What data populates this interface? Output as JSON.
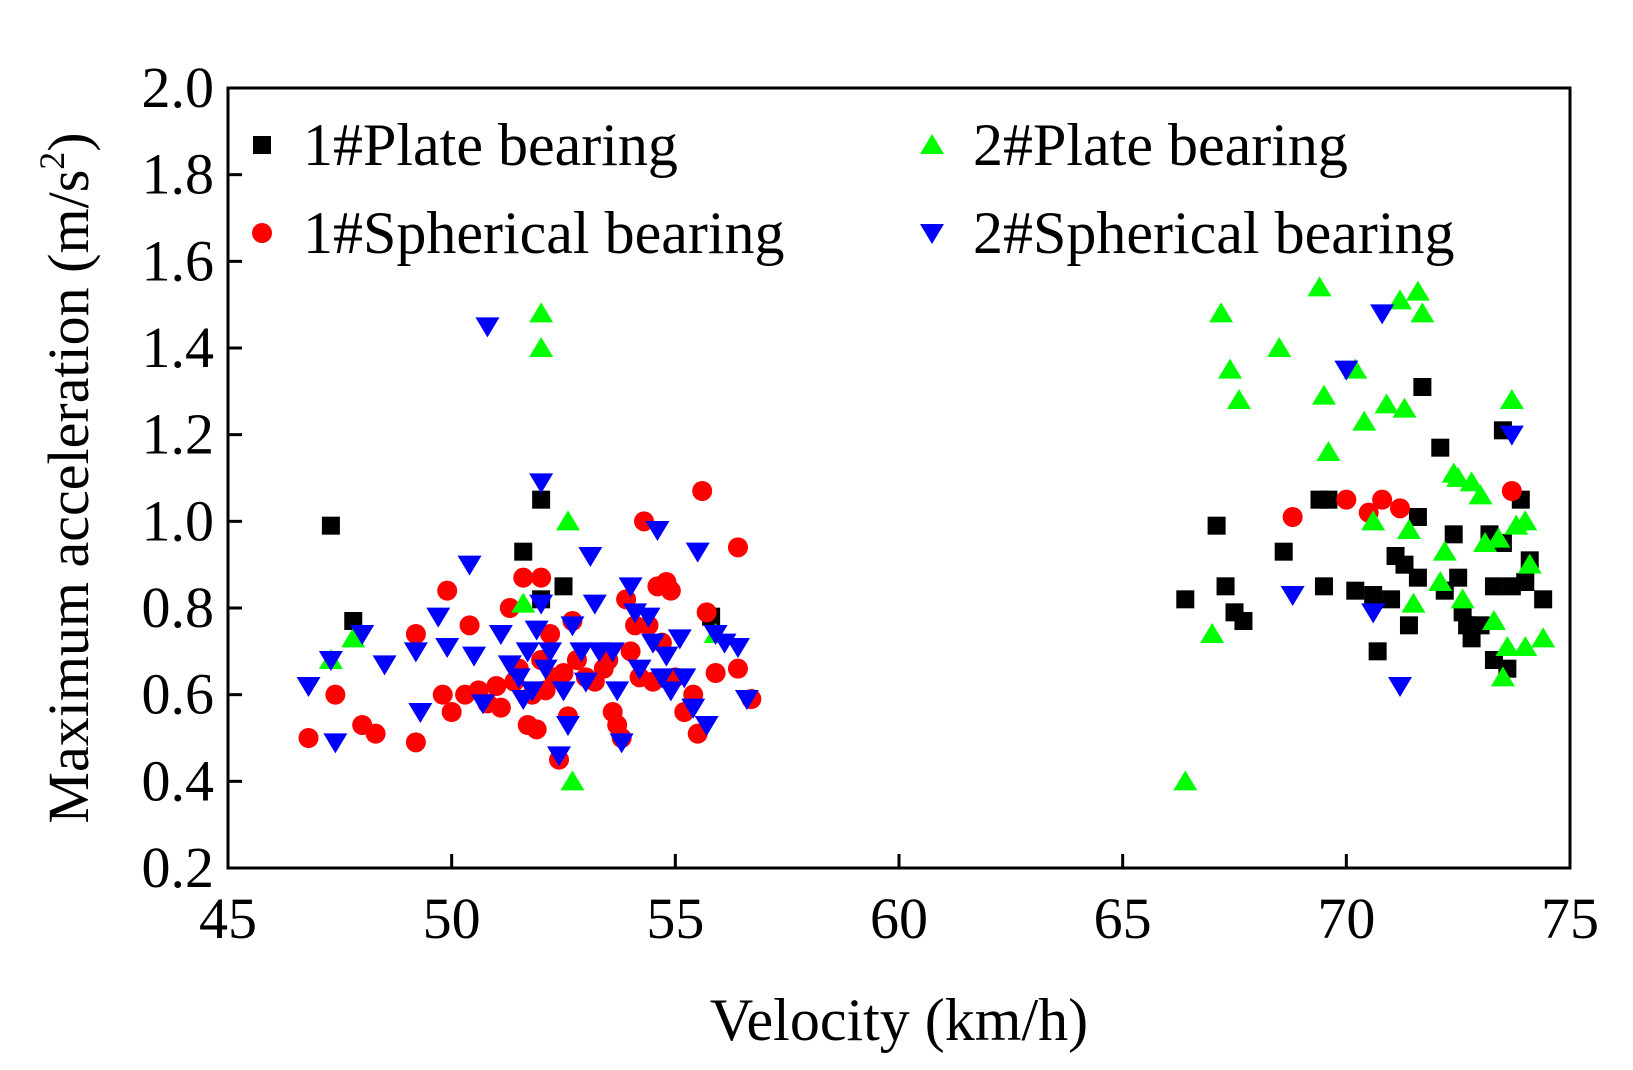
{
  "chart_data": {
    "type": "scatter",
    "title": "",
    "xlabel": "Velocity (km/h)",
    "ylabel": "Maximum acceleration (m/s²)",
    "ylabel_main": "Maximum acceleration (m/s",
    "ylabel_sup": "2",
    "ylabel_close": ")",
    "xlim": [
      45,
      75
    ],
    "ylim": [
      0.2,
      2.0
    ],
    "xticks": [
      45,
      50,
      55,
      60,
      65,
      70,
      75
    ],
    "yticks": [
      0.2,
      0.4,
      0.6,
      0.8,
      1.0,
      1.2,
      1.4,
      1.6,
      1.8,
      2.0
    ],
    "xtick_labels": [
      "45",
      "50",
      "55",
      "60",
      "65",
      "70",
      "75"
    ],
    "ytick_labels": [
      "0.2",
      "0.4",
      "0.6",
      "0.8",
      "1.0",
      "1.2",
      "1.4",
      "1.6",
      "1.8",
      "2.0"
    ],
    "grid": false,
    "legend_position": "top",
    "series": [
      {
        "name": "1#Plate bearing",
        "marker": "square",
        "color": "#000000",
        "points": [
          [
            47.3,
            0.99
          ],
          [
            47.8,
            0.77
          ],
          [
            51.6,
            0.93
          ],
          [
            52.0,
            1.05
          ],
          [
            52.0,
            0.82
          ],
          [
            52.5,
            0.85
          ],
          [
            55.8,
            0.78
          ],
          [
            66.4,
            0.82
          ],
          [
            67.1,
            0.99
          ],
          [
            67.3,
            0.85
          ],
          [
            67.5,
            0.79
          ],
          [
            67.7,
            0.77
          ],
          [
            68.6,
            0.93
          ],
          [
            69.4,
            1.05
          ],
          [
            69.5,
            0.85
          ],
          [
            69.6,
            1.05
          ],
          [
            70.2,
            0.84
          ],
          [
            70.6,
            0.83
          ],
          [
            70.7,
            0.7
          ],
          [
            71.0,
            0.82
          ],
          [
            71.1,
            0.92
          ],
          [
            71.3,
            0.9
          ],
          [
            71.4,
            0.76
          ],
          [
            71.6,
            1.01
          ],
          [
            71.6,
            0.87
          ],
          [
            71.7,
            1.31
          ],
          [
            72.1,
            1.17
          ],
          [
            72.2,
            0.84
          ],
          [
            72.4,
            0.97
          ],
          [
            72.5,
            0.87
          ],
          [
            72.6,
            0.79
          ],
          [
            72.7,
            0.76
          ],
          [
            72.8,
            0.73
          ],
          [
            73.0,
            0.76
          ],
          [
            73.2,
            0.97
          ],
          [
            73.3,
            0.85
          ],
          [
            73.3,
            0.68
          ],
          [
            73.5,
            0.95
          ],
          [
            73.5,
            1.21
          ],
          [
            73.6,
            0.66
          ],
          [
            73.7,
            0.85
          ],
          [
            73.9,
            1.05
          ],
          [
            74.0,
            0.86
          ],
          [
            74.1,
            0.91
          ],
          [
            74.4,
            0.82
          ]
        ]
      },
      {
        "name": "1#Spherical bearing",
        "marker": "circle",
        "color": "#ff0000",
        "points": [
          [
            46.8,
            0.5
          ],
          [
            47.4,
            0.6
          ],
          [
            48.0,
            0.53
          ],
          [
            48.3,
            0.51
          ],
          [
            49.2,
            0.74
          ],
          [
            49.2,
            0.49
          ],
          [
            49.8,
            0.6
          ],
          [
            49.9,
            0.84
          ],
          [
            50.0,
            0.56
          ],
          [
            50.3,
            0.6
          ],
          [
            50.4,
            0.76
          ],
          [
            50.6,
            0.61
          ],
          [
            50.8,
            0.58
          ],
          [
            51.0,
            0.62
          ],
          [
            51.1,
            0.57
          ],
          [
            51.3,
            0.8
          ],
          [
            51.4,
            0.63
          ],
          [
            51.5,
            0.66
          ],
          [
            51.6,
            0.87
          ],
          [
            51.7,
            0.53
          ],
          [
            51.8,
            0.6
          ],
          [
            51.9,
            0.52
          ],
          [
            52.0,
            0.87
          ],
          [
            52.0,
            0.68
          ],
          [
            52.1,
            0.61
          ],
          [
            52.2,
            0.74
          ],
          [
            52.3,
            0.64
          ],
          [
            52.4,
            0.45
          ],
          [
            52.5,
            0.65
          ],
          [
            52.6,
            0.55
          ],
          [
            52.7,
            0.77
          ],
          [
            52.8,
            0.68
          ],
          [
            53.0,
            0.64
          ],
          [
            53.2,
            0.63
          ],
          [
            53.4,
            0.66
          ],
          [
            53.5,
            0.68
          ],
          [
            53.6,
            0.56
          ],
          [
            53.7,
            0.53
          ],
          [
            53.8,
            0.5
          ],
          [
            53.9,
            0.82
          ],
          [
            54.0,
            0.7
          ],
          [
            54.1,
            0.76
          ],
          [
            54.2,
            0.64
          ],
          [
            54.3,
            1.0
          ],
          [
            54.4,
            0.76
          ],
          [
            54.5,
            0.63
          ],
          [
            54.6,
            0.85
          ],
          [
            54.7,
            0.72
          ],
          [
            54.8,
            0.86
          ],
          [
            54.9,
            0.84
          ],
          [
            55.0,
            0.64
          ],
          [
            55.2,
            0.56
          ],
          [
            55.4,
            0.6
          ],
          [
            55.5,
            0.51
          ],
          [
            55.6,
            1.07
          ],
          [
            55.7,
            0.79
          ],
          [
            55.9,
            0.65
          ],
          [
            56.4,
            0.94
          ],
          [
            56.4,
            0.66
          ],
          [
            56.7,
            0.59
          ],
          [
            68.8,
            1.01
          ],
          [
            70.0,
            1.05
          ],
          [
            70.5,
            1.02
          ],
          [
            70.8,
            1.05
          ],
          [
            71.2,
            1.03
          ],
          [
            73.7,
            1.07
          ]
        ]
      },
      {
        "name": "2#Plate bearing",
        "marker": "triangle-up",
        "color": "#00ff00",
        "points": [
          [
            47.3,
            0.68
          ],
          [
            47.8,
            0.73
          ],
          [
            51.6,
            0.81
          ],
          [
            52.0,
            1.48
          ],
          [
            52.0,
            1.4
          ],
          [
            52.6,
            1.0
          ],
          [
            52.7,
            0.4
          ],
          [
            55.9,
            0.74
          ],
          [
            66.4,
            0.4
          ],
          [
            67.0,
            0.74
          ],
          [
            67.2,
            1.48
          ],
          [
            67.4,
            1.35
          ],
          [
            67.6,
            1.28
          ],
          [
            68.5,
            1.4
          ],
          [
            69.4,
            1.54
          ],
          [
            69.5,
            1.29
          ],
          [
            69.6,
            1.16
          ],
          [
            70.2,
            1.35
          ],
          [
            70.4,
            1.23
          ],
          [
            70.6,
            1.0
          ],
          [
            70.9,
            1.27
          ],
          [
            71.2,
            1.51
          ],
          [
            71.3,
            1.26
          ],
          [
            71.4,
            0.98
          ],
          [
            71.5,
            0.81
          ],
          [
            71.6,
            1.53
          ],
          [
            71.7,
            1.48
          ],
          [
            72.1,
            0.86
          ],
          [
            72.2,
            0.93
          ],
          [
            72.4,
            1.11
          ],
          [
            72.5,
            1.1
          ],
          [
            72.6,
            0.82
          ],
          [
            72.8,
            1.09
          ],
          [
            73.0,
            1.06
          ],
          [
            73.1,
            0.95
          ],
          [
            73.3,
            0.77
          ],
          [
            73.4,
            0.96
          ],
          [
            73.5,
            0.64
          ],
          [
            73.6,
            0.71
          ],
          [
            73.7,
            1.28
          ],
          [
            73.8,
            0.99
          ],
          [
            74.0,
            1.0
          ],
          [
            74.1,
            0.9
          ],
          [
            74.4,
            0.73
          ],
          [
            74.0,
            0.71
          ]
        ]
      },
      {
        "name": "2#Spherical bearing",
        "marker": "triangle-down",
        "color": "#0000ff",
        "points": [
          [
            46.8,
            0.62
          ],
          [
            47.3,
            0.68
          ],
          [
            47.4,
            0.49
          ],
          [
            48.0,
            0.74
          ],
          [
            48.5,
            0.67
          ],
          [
            49.2,
            0.7
          ],
          [
            49.3,
            0.56
          ],
          [
            49.7,
            0.78
          ],
          [
            49.9,
            0.71
          ],
          [
            50.4,
            0.9
          ],
          [
            50.5,
            0.69
          ],
          [
            50.7,
            0.58
          ],
          [
            50.8,
            1.45
          ],
          [
            51.1,
            0.74
          ],
          [
            51.3,
            0.67
          ],
          [
            51.5,
            0.64
          ],
          [
            51.6,
            0.59
          ],
          [
            51.7,
            0.7
          ],
          [
            51.8,
            0.61
          ],
          [
            51.9,
            0.75
          ],
          [
            52.0,
            1.09
          ],
          [
            52.0,
            0.81
          ],
          [
            52.1,
            0.66
          ],
          [
            52.2,
            0.7
          ],
          [
            52.4,
            0.46
          ],
          [
            52.5,
            0.61
          ],
          [
            52.6,
            0.53
          ],
          [
            52.7,
            0.76
          ],
          [
            52.9,
            0.7
          ],
          [
            53.0,
            0.63
          ],
          [
            53.1,
            0.92
          ],
          [
            53.2,
            0.81
          ],
          [
            53.3,
            0.7
          ],
          [
            53.6,
            0.7
          ],
          [
            53.7,
            0.61
          ],
          [
            53.8,
            0.49
          ],
          [
            54.0,
            0.85
          ],
          [
            54.1,
            0.79
          ],
          [
            54.2,
            0.66
          ],
          [
            54.4,
            0.78
          ],
          [
            54.5,
            0.72
          ],
          [
            54.6,
            0.98
          ],
          [
            54.7,
            0.64
          ],
          [
            54.8,
            0.69
          ],
          [
            54.9,
            0.61
          ],
          [
            55.1,
            0.73
          ],
          [
            55.2,
            0.64
          ],
          [
            55.4,
            0.57
          ],
          [
            55.5,
            0.93
          ],
          [
            55.7,
            0.53
          ],
          [
            55.9,
            0.74
          ],
          [
            56.1,
            0.72
          ],
          [
            56.4,
            0.71
          ],
          [
            56.6,
            0.59
          ],
          [
            68.8,
            0.83
          ],
          [
            70.0,
            1.35
          ],
          [
            70.6,
            0.79
          ],
          [
            70.8,
            1.48
          ],
          [
            71.2,
            0.62
          ],
          [
            73.7,
            1.2
          ]
        ]
      }
    ]
  }
}
